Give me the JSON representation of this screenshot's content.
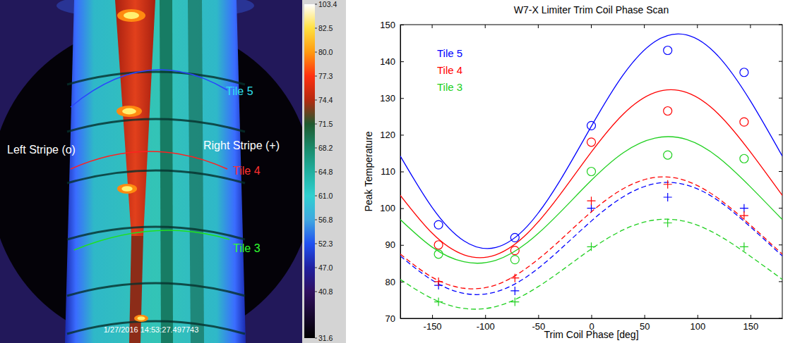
{
  "thermal_image": {
    "stripe_labels": [
      "Left Stripe (o)",
      "Right Stripe (+)"
    ],
    "tile_labels": [
      "Tile 5",
      "Tile 4",
      "Tile 3"
    ],
    "timestamp": "1/27/2016 14:53:27.497743",
    "colorbar": {
      "range": [
        31.6,
        103.4
      ],
      "ticks": [
        103.4,
        82.5,
        {
          "value": 80,
          "label": "80.0"
        },
        77.3,
        74.4,
        71.5,
        68.2,
        64.8,
        {
          "value": 61,
          "label": "61.0"
        },
        56.8,
        52.3,
        {
          "value": 47,
          "label": "47.0"
        },
        40.8,
        31.6
      ]
    }
  },
  "chart_data": {
    "type": "scatter",
    "title": "W7-X Limiter Trim Coil Phase Scan",
    "x_label": "Trim Coil Phase [deg]",
    "y_label": "Peak Temperature",
    "xlim": [
      -180,
      180
    ],
    "ylim": [
      70,
      150
    ],
    "xticks": [
      -150,
      -100,
      -50,
      0,
      50,
      100,
      150
    ],
    "yticks": [
      70,
      80,
      90,
      100,
      110,
      120,
      130,
      140,
      150
    ],
    "legend": "upper left",
    "x": [
      -144,
      -72,
      0,
      72,
      144
    ],
    "fit_x": [
      -180,
      -150,
      -120,
      -90,
      -60,
      -30,
      0,
      30,
      60,
      90,
      120,
      150,
      180
    ],
    "series": [
      {
        "name": "Tile 5",
        "color": "#0000ff",
        "left": {
          "marker": "circle",
          "line_style": "solid",
          "values": [
            95.5,
            92,
            122.5,
            143,
            137
          ],
          "fit": [
            114.2,
            100.2,
            91.1,
            89.3,
            95.2,
            107.3,
            122.3,
            136.3,
            145.4,
            147.2,
            141.3,
            129.2,
            114.2
          ]
        },
        "right": {
          "marker": "plus",
          "line_style": "dashed",
          "values": [
            79,
            77.5,
            100,
            103,
            100
          ],
          "fit": [
            87.0,
            80.4,
            76.8,
            77.2,
            81.5,
            88.6,
            96.5,
            103.1,
            106.7,
            106.3,
            102.0,
            94.9,
            87.0
          ]
        }
      },
      {
        "name": "Tile 4",
        "color": "#ff0000",
        "left": {
          "marker": "circle",
          "line_style": "solid",
          "values": [
            90,
            88.5,
            118,
            126.5,
            123.5
          ],
          "fit": [
            103.5,
            93.2,
            87.3,
            87.3,
            93.2,
            103.5,
            115.3,
            125.6,
            131.5,
            131.5,
            125.6,
            115.3,
            103.5
          ]
        },
        "right": {
          "marker": "plus",
          "line_style": "dashed",
          "values": [
            80,
            81,
            102,
            106.5,
            98
          ],
          "fit": [
            87.5,
            81.2,
            78.2,
            79.1,
            83.9,
            91.1,
            99.0,
            105.3,
            108.4,
            107.4,
            102.6,
            95.4,
            87.5
          ]
        }
      },
      {
        "name": "Tile 3",
        "color": "#20d020",
        "left": {
          "marker": "circle",
          "line_style": "solid",
          "values": [
            87.5,
            86,
            110,
            114.5,
            113.5
          ],
          "fit": [
            96.9,
            89.4,
            85.4,
            85.8,
            90.7,
            98.7,
            107.6,
            115.1,
            119.1,
            118.7,
            113.8,
            105.8,
            96.9
          ]
        },
        "right": {
          "marker": "plus",
          "line_style": "dashed",
          "values": [
            74.5,
            74.5,
            89.5,
            96,
            89.5
          ],
          "fit": [
            80.6,
            75.4,
            72.7,
            73.2,
            76.9,
            82.6,
            88.9,
            94.1,
            96.8,
            96.3,
            92.6,
            86.9,
            80.6
          ]
        }
      }
    ]
  }
}
